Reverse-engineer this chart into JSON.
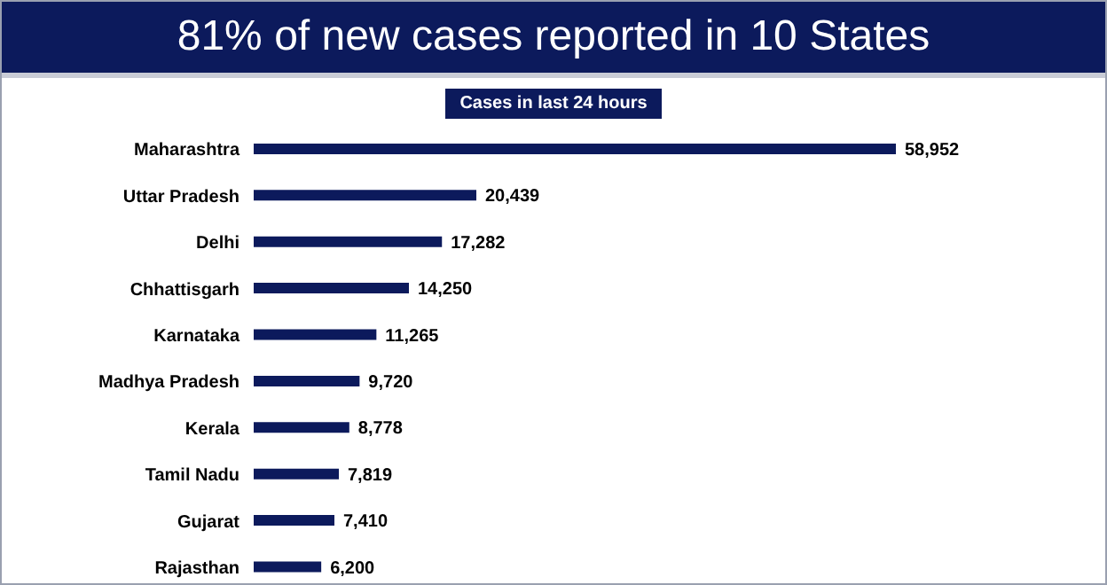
{
  "chart_data": {
    "type": "bar",
    "orientation": "horizontal",
    "title": "81% of new cases reported in 10 States",
    "subtitle": "Cases in last 24 hours",
    "categories": [
      "Maharashtra",
      "Uttar Pradesh",
      "Delhi",
      "Chhattisgarh",
      "Karnataka",
      "Madhya Pradesh",
      "Kerala",
      "Tamil Nadu",
      "Gujarat",
      "Rajasthan"
    ],
    "values": [
      58952,
      20439,
      17282,
      14250,
      11265,
      9720,
      8778,
      7819,
      7410,
      6200
    ],
    "value_labels": [
      "58,952",
      "20,439",
      "17,282",
      "14,250",
      "11,265",
      "9,720",
      "8,778",
      "7,819",
      "7,410",
      "6,200"
    ],
    "color": "#0c1a5c"
  }
}
